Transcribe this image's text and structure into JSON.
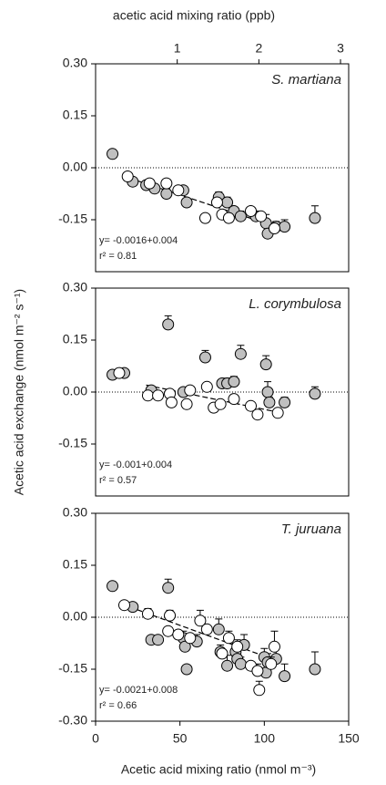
{
  "chart_data": [
    {
      "type": "scatter",
      "title": "S. martiana",
      "x2label": "acetic acid mixing ratio (ppb)",
      "x2lim": [
        0,
        3.1
      ],
      "x2ticks": [
        1,
        2,
        3
      ],
      "xlim": [
        0,
        150
      ],
      "ylim": [
        -0.3,
        0.3
      ],
      "yticks": [
        {
          "value": 0.3,
          "label": "0.30"
        },
        0.15,
        {
          "value": 0,
          "label": "0.00"
        },
        -0.15
      ],
      "hline": 0,
      "annotations": [
        "y= -0.0016+0.004",
        "r² = 0.81"
      ],
      "series": [
        {
          "color": "#c0c0c0",
          "x": [
            10,
            22,
            30,
            35,
            42,
            52,
            54,
            73,
            78,
            82,
            86,
            95,
            101,
            102,
            107,
            112,
            130
          ],
          "values": [
            0.04,
            -0.04,
            -0.05,
            -0.06,
            -0.075,
            -0.065,
            -0.1,
            -0.085,
            -0.1,
            -0.125,
            -0.14,
            -0.14,
            -0.16,
            -0.19,
            -0.17,
            -0.17,
            -0.145
          ],
          "errors": [
            0.005,
            0.01,
            0.01,
            0.01,
            0.015,
            0.01,
            0.01,
            0.015,
            0.015,
            0.01,
            0.015,
            0.015,
            0.025,
            0.02,
            0.015,
            0.02,
            0.035
          ]
        },
        {
          "color": "#ffffff",
          "x": [
            19,
            32,
            42,
            49,
            65,
            72,
            75,
            79,
            92,
            98,
            106
          ],
          "values": [
            -0.025,
            -0.045,
            -0.045,
            -0.065,
            -0.145,
            -0.1,
            -0.135,
            -0.145,
            -0.125,
            -0.14,
            -0.175
          ],
          "errors": [
            0.005,
            0.005,
            0.005,
            0.005,
            0.005,
            0.005,
            0.01,
            0.01,
            0.01,
            0.01,
            0.01
          ]
        }
      ],
      "fit": {
        "x": [
          20,
          110
        ],
        "values": [
          -0.03,
          -0.175
        ]
      }
    },
    {
      "type": "scatter",
      "title": "L. corymbulosa",
      "ylabel": "Acetic acid exchange  (nmol m⁻² s⁻¹)",
      "xlim": [
        0,
        150
      ],
      "ylim": [
        -0.3,
        0.3
      ],
      "yticks": [
        {
          "value": 0.3,
          "label": "0.30"
        },
        0.15,
        {
          "value": 0,
          "label": "0.00"
        },
        -0.15
      ],
      "hline": 0,
      "annotations": [
        "y= -0.001+0.004",
        "r² = 0.57"
      ],
      "series": [
        {
          "color": "#c0c0c0",
          "x": [
            10,
            17,
            33,
            43,
            52,
            65,
            75,
            78,
            82,
            86,
            101,
            102,
            103,
            112,
            130
          ],
          "values": [
            0.05,
            0.055,
            0.005,
            0.195,
            0.0,
            0.1,
            0.025,
            0.025,
            0.03,
            0.11,
            0.08,
            0.0,
            -0.03,
            -0.03,
            -0.005
          ],
          "errors": [
            0.005,
            0.005,
            0.01,
            0.025,
            0.01,
            0.02,
            0.01,
            0.015,
            0.015,
            0.025,
            0.025,
            0.03,
            0.015,
            0.015,
            0.02
          ]
        },
        {
          "color": "#ffffff",
          "x": [
            14,
            31,
            37,
            44,
            45,
            54,
            56,
            66,
            70,
            74,
            82,
            92,
            96,
            108
          ],
          "values": [
            0.055,
            -0.01,
            -0.01,
            -0.005,
            -0.03,
            -0.035,
            0.005,
            0.015,
            -0.045,
            -0.035,
            -0.02,
            -0.04,
            -0.065,
            -0.06
          ],
          "errors": [
            0.005,
            0.005,
            0.005,
            0.005,
            0.005,
            0.005,
            0.005,
            0.005,
            0.005,
            0.005,
            0.005,
            0.005,
            0.005,
            0.005
          ]
        }
      ],
      "fit": {
        "x": [
          30,
          110
        ],
        "values": [
          0.02,
          -0.06
        ]
      }
    },
    {
      "type": "scatter",
      "title": "T. juruana",
      "xlabel": "Acetic acid mixing ratio (nmol m⁻³)",
      "xlim": [
        0,
        150
      ],
      "xticks": [
        0,
        50,
        100,
        150
      ],
      "ylim": [
        -0.3,
        0.3
      ],
      "yticks": [
        {
          "value": 0.3,
          "label": "0.30"
        },
        0.15,
        {
          "value": 0,
          "label": "0.00"
        },
        -0.15,
        {
          "value": -0.3,
          "label": "-0.30"
        }
      ],
      "hline": 0,
      "annotations": [
        "y= -0.0021+0.008",
        "r² = 0.66"
      ],
      "series": [
        {
          "color": "#c0c0c0",
          "x": [
            10,
            22,
            33,
            37,
            43,
            52,
            53,
            54,
            60,
            73,
            74,
            78,
            83,
            84,
            86,
            88,
            100,
            101,
            102,
            107,
            112,
            130
          ],
          "values": [
            0.09,
            0.03,
            -0.065,
            -0.065,
            0.085,
            -0.06,
            -0.085,
            -0.15,
            -0.07,
            -0.035,
            -0.1,
            -0.14,
            -0.1,
            -0.12,
            -0.135,
            -0.08,
            -0.115,
            -0.16,
            -0.13,
            -0.12,
            -0.17,
            -0.15
          ],
          "errors": [
            0.005,
            0.005,
            0.01,
            0.01,
            0.025,
            0.02,
            0.02,
            0.01,
            0.02,
            0.03,
            0.02,
            0.03,
            0.025,
            0.02,
            0.02,
            0.03,
            0.025,
            0.03,
            0.025,
            0.03,
            0.035,
            0.05
          ]
        },
        {
          "color": "#ffffff",
          "x": [
            17,
            31,
            44,
            43,
            49,
            56,
            62,
            66,
            75,
            79,
            84,
            92,
            96,
            97,
            104,
            106
          ],
          "values": [
            0.035,
            0.01,
            0.005,
            -0.04,
            -0.05,
            -0.06,
            -0.01,
            -0.035,
            -0.105,
            -0.06,
            -0.085,
            -0.14,
            -0.155,
            -0.21,
            -0.135,
            -0.085
          ],
          "errors": [
            0.005,
            0.015,
            0.015,
            0.01,
            0.01,
            0.01,
            0.03,
            0.01,
            0.01,
            0.02,
            0.02,
            0.01,
            0.02,
            0.025,
            0.02,
            0.045
          ]
        }
      ],
      "fit": {
        "x": [
          20,
          110
        ],
        "values": [
          0.03,
          -0.13
        ]
      }
    }
  ]
}
